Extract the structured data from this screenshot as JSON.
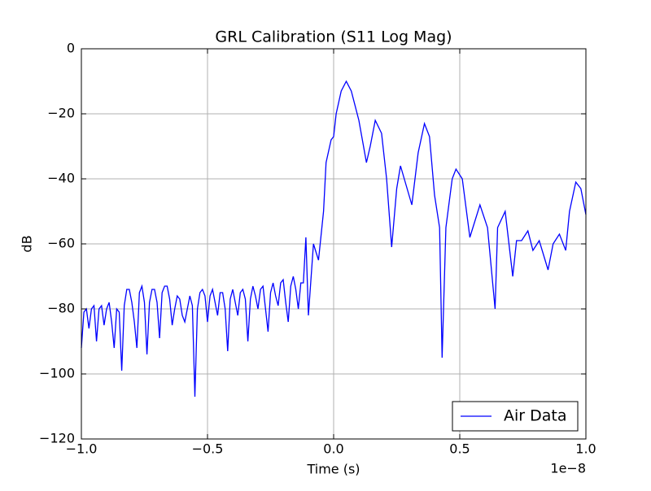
{
  "chart_data": {
    "type": "line",
    "title": "GRL Calibration (S11 Log Mag)",
    "x_label": "Time (s)",
    "y_label": "dB",
    "x_offset_label": "1e−8",
    "xlim": [
      -1e-08,
      1e-08
    ],
    "xticks": [
      {
        "value": -1e-08,
        "label": "−1.0"
      },
      {
        "value": -5e-09,
        "label": "−0.5"
      },
      {
        "value": 0,
        "label": "0.0"
      },
      {
        "value": 5e-09,
        "label": "0.5"
      },
      {
        "value": 1e-08,
        "label": "1.0"
      }
    ],
    "ylim": [
      -120,
      0
    ],
    "yticks": [
      {
        "value": -120,
        "label": "−120"
      },
      {
        "value": -100,
        "label": "−100"
      },
      {
        "value": -80,
        "label": "−80"
      },
      {
        "value": -60,
        "label": "−60"
      },
      {
        "value": -40,
        "label": "−40"
      },
      {
        "value": -20,
        "label": "−20"
      },
      0
    ],
    "grid": true,
    "legend": "lower right",
    "series": [
      {
        "name": "Air Data",
        "color": "#0000ff",
        "x": [
          -1e-08,
          -9.9e-09,
          -9.8e-09,
          -9.7e-09,
          -9.6e-09,
          -9.5e-09,
          -9.4e-09,
          -9.3e-09,
          -9.2e-09,
          -9.1e-09,
          -9e-09,
          -8.9e-09,
          -8.8e-09,
          -8.7e-09,
          -8.6e-09,
          -8.5e-09,
          -8.4e-09,
          -8.3e-09,
          -8.2e-09,
          -8.1e-09,
          -8e-09,
          -7.9e-09,
          -7.8e-09,
          -7.7e-09,
          -7.6e-09,
          -7.5e-09,
          -7.4e-09,
          -7.3e-09,
          -7.2e-09,
          -7.1e-09,
          -7e-09,
          -6.9e-09,
          -6.8e-09,
          -6.7e-09,
          -6.6e-09,
          -6.5e-09,
          -6.4e-09,
          -6.3e-09,
          -6.2e-09,
          -6.1e-09,
          -6e-09,
          -5.9e-09,
          -5.8e-09,
          -5.7e-09,
          -5.6e-09,
          -5.5e-09,
          -5.4e-09,
          -5.3e-09,
          -5.2e-09,
          -5.1e-09,
          -5e-09,
          -4.9e-09,
          -4.8e-09,
          -4.7e-09,
          -4.6e-09,
          -4.5e-09,
          -4.4e-09,
          -4.3e-09,
          -4.2e-09,
          -4.1e-09,
          -4e-09,
          -3.9e-09,
          -3.8e-09,
          -3.7e-09,
          -3.6e-09,
          -3.5e-09,
          -3.4e-09,
          -3.3e-09,
          -3.2e-09,
          -3.1e-09,
          -3e-09,
          -2.9e-09,
          -2.8e-09,
          -2.7e-09,
          -2.6e-09,
          -2.5e-09,
          -2.4e-09,
          -2.3e-09,
          -2.2e-09,
          -2.1e-09,
          -2e-09,
          -1.9e-09,
          -1.8e-09,
          -1.7e-09,
          -1.6e-09,
          -1.5e-09,
          -1.4e-09,
          -1.3e-09,
          -1.2e-09,
          -1.1e-09,
          -1e-09,
          -8e-10,
          -6e-10,
          -4e-10,
          -3e-10,
          -1e-10,
          0,
          1e-10,
          3e-10,
          5e-10,
          7e-10,
          1e-09,
          1.3e-09,
          1.45e-09,
          1.65e-09,
          1.9e-09,
          2.1e-09,
          2.3e-09,
          2.5e-09,
          2.65e-09,
          2.8e-09,
          3.1e-09,
          3.35e-09,
          3.6e-09,
          3.8e-09,
          4e-09,
          4.2e-09,
          4.3e-09,
          4.45e-09,
          4.7e-09,
          4.85e-09,
          5.1e-09,
          5.4e-09,
          5.8e-09,
          6.1e-09,
          6.4e-09,
          6.5e-09,
          6.8e-09,
          7.1e-09,
          7.25e-09,
          7.45e-09,
          7.7e-09,
          7.9e-09,
          8.15e-09,
          8.5e-09,
          8.7e-09,
          8.95e-09,
          9.2e-09,
          9.35e-09,
          9.6e-09,
          9.8e-09,
          1e-08
        ],
        "values": [
          -92,
          -81,
          -80,
          -86,
          -80,
          -79,
          -90,
          -80,
          -79,
          -85,
          -80,
          -78,
          -84,
          -92,
          -80,
          -81,
          -99,
          -79,
          -74,
          -74,
          -78,
          -84,
          -92,
          -75,
          -73,
          -78,
          -94,
          -78,
          -74,
          -74,
          -78,
          -89,
          -75,
          -73,
          -73,
          -77,
          -85,
          -80,
          -76,
          -77,
          -82,
          -84,
          -80,
          -76,
          -79,
          -107,
          -80,
          -75,
          -74,
          -76,
          -84,
          -76,
          -74,
          -78,
          -82,
          -75,
          -75,
          -80,
          -93,
          -77,
          -74,
          -78,
          -82,
          -75,
          -74,
          -77,
          -90,
          -77,
          -73,
          -76,
          -80,
          -74,
          -73,
          -80,
          -87,
          -75,
          -72,
          -76,
          -79,
          -72,
          -71,
          -78,
          -84,
          -73,
          -70,
          -74,
          -80,
          -72,
          -72,
          -58,
          -82,
          -60,
          -65,
          -50,
          -35,
          -28,
          -27,
          -20,
          -13,
          -10,
          -13,
          -22,
          -35,
          -30,
          -22,
          -26,
          -40,
          -61,
          -43,
          -36,
          -40,
          -48,
          -32,
          -23,
          -27,
          -45,
          -55,
          -95,
          -55,
          -40,
          -37,
          -40,
          -58,
          -48,
          -55,
          -80,
          -55,
          -50,
          -70,
          -59,
          -59,
          -56,
          -62,
          -59,
          -68,
          -60,
          -57,
          -62,
          -50,
          -41,
          -43,
          -51
        ]
      }
    ]
  }
}
